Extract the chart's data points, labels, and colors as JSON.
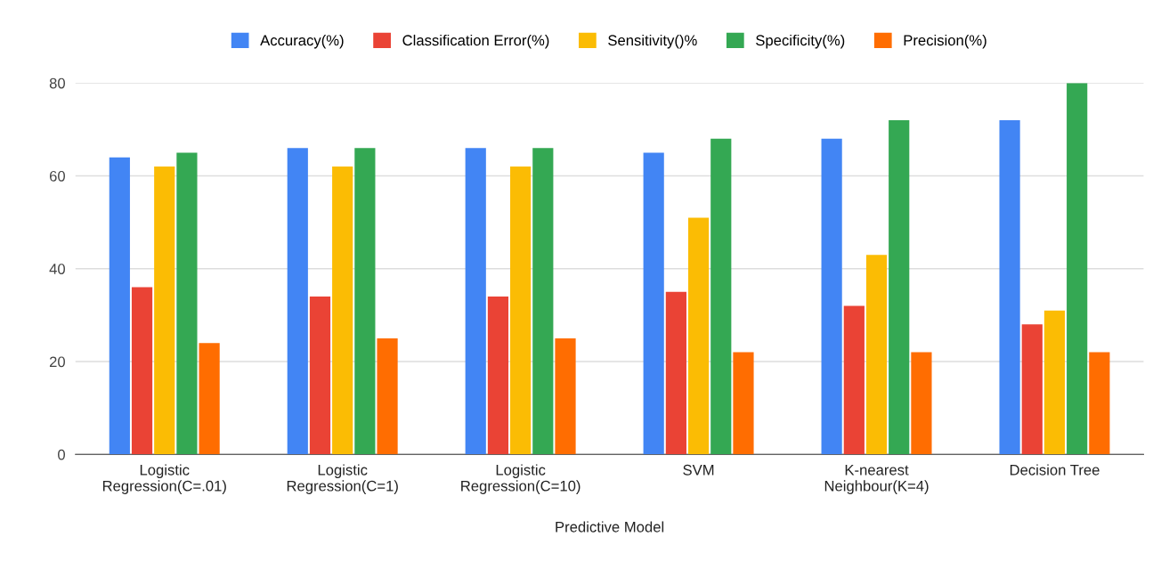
{
  "chart_data": {
    "type": "bar",
    "xlabel": "Predictive Model",
    "categories": [
      "Logistic\nRegression(C=.01)",
      "Logistic\nRegression(C=1)",
      "Logistic\nRegression(C=10)",
      "SVM",
      "K-nearest\nNeighbour(K=4)",
      "Decision Tree"
    ],
    "series": [
      {
        "name": "Accuracy(%)",
        "color": "#4285f4",
        "values": [
          64,
          66,
          66,
          65,
          68,
          72
        ]
      },
      {
        "name": "Classification Error(%)",
        "color": "#ea4335",
        "values": [
          36,
          34,
          34,
          35,
          32,
          28
        ]
      },
      {
        "name": "Sensitivity()%",
        "color": "#fbbc04",
        "values": [
          62,
          62,
          62,
          51,
          43,
          31
        ]
      },
      {
        "name": "Specificity(%)",
        "color": "#34a853",
        "values": [
          65,
          66,
          66,
          68,
          72,
          80
        ]
      },
      {
        "name": "Precision(%)",
        "color": "#ff6d01",
        "values": [
          24,
          25,
          25,
          22,
          22,
          22
        ]
      }
    ],
    "ylim": [
      0,
      80
    ],
    "yticks": [
      0,
      20,
      40,
      60,
      80
    ],
    "grid": "y",
    "legend": "top"
  }
}
